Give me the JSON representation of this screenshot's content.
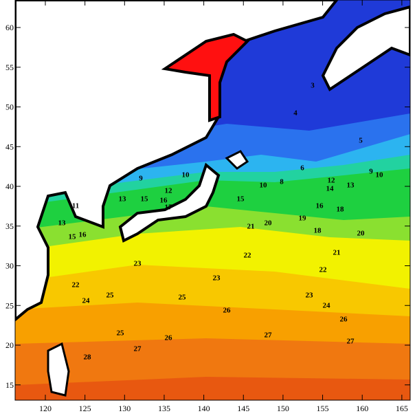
{
  "axes": {
    "x_ticks": [
      "120",
      "125",
      "130",
      "135",
      "140",
      "145",
      "150",
      "155",
      "160",
      "165"
    ],
    "y_ticks": [
      "15",
      "20",
      "25",
      "30",
      "35",
      "40",
      "45",
      "50",
      "55",
      "60"
    ]
  },
  "contour_labels": [
    "9",
    "10",
    "12",
    "13",
    "15",
    "16",
    "17",
    "11",
    "13",
    "15",
    "16",
    "21",
    "20",
    "19",
    "18",
    "18",
    "20",
    "16",
    "14",
    "12",
    "13",
    "22",
    "21",
    "22",
    "23",
    "23",
    "22",
    "24",
    "25",
    "25",
    "23",
    "26",
    "24",
    "26",
    "25",
    "26",
    "27",
    "27",
    "27",
    "28",
    "10",
    "8",
    "15",
    "3",
    "4",
    "5",
    "6",
    "9",
    "10"
  ]
}
